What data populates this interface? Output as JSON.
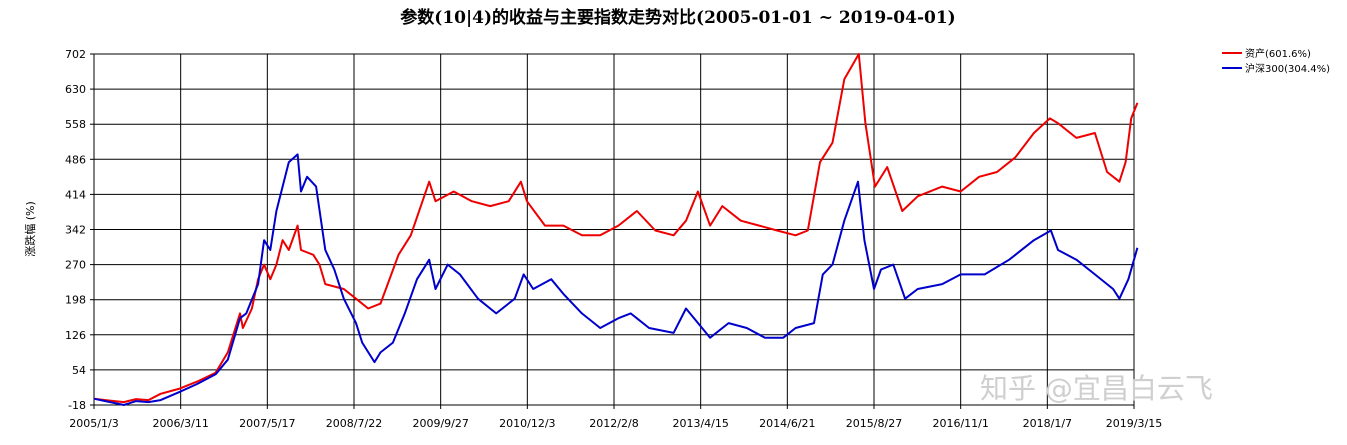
{
  "chart_data": {
    "type": "line",
    "title": "参数(10|4)的收益与主要指数走势对比(2005-01-01 ~ 2019-04-01)",
    "xlabel": "",
    "ylabel": "涨跌幅 (%)",
    "ylim": [
      -18,
      702
    ],
    "yticks": [
      "-18",
      "54",
      "126",
      "198",
      "270",
      "342",
      "414",
      "486",
      "558",
      "630",
      "702"
    ],
    "xticks": [
      "2005/1/3",
      "2006/3/11",
      "2007/5/17",
      "2008/7/22",
      "2009/9/27",
      "2010/12/3",
      "2012/2/8",
      "2013/4/15",
      "2014/6/21",
      "2015/8/27",
      "2016/11/1",
      "2018/1/7",
      "2019/3/15"
    ],
    "grid": true,
    "legend_position": "top-right",
    "series": [
      {
        "name": "资产(601.6%)",
        "color": "#ee0000",
        "points": [
          [
            "2005/1/3",
            -5
          ],
          [
            "2005/3/1",
            -8
          ],
          [
            "2005/6/1",
            -12
          ],
          [
            "2005/8/1",
            -6
          ],
          [
            "2005/10/1",
            -8
          ],
          [
            "2005/12/1",
            5
          ],
          [
            "2006/3/1",
            15
          ],
          [
            "2006/6/1",
            30
          ],
          [
            "2006/9/1",
            48
          ],
          [
            "2006/11/1",
            90
          ],
          [
            "2007/1/1",
            170
          ],
          [
            "2007/1/15",
            140
          ],
          [
            "2007/3/1",
            180
          ],
          [
            "2007/4/1",
            240
          ],
          [
            "2007/5/1",
            270
          ],
          [
            "2007/6/1",
            240
          ],
          [
            "2007/7/1",
            270
          ],
          [
            "2007/8/1",
            320
          ],
          [
            "2007/9/1",
            300
          ],
          [
            "2007/10/15",
            350
          ],
          [
            "2007/11/1",
            300
          ],
          [
            "2008/1/1",
            290
          ],
          [
            "2008/2/1",
            270
          ],
          [
            "2008/3/1",
            230
          ],
          [
            "2008/6/1",
            220
          ],
          [
            "2008/8/1",
            200
          ],
          [
            "2008/10/1",
            180
          ],
          [
            "2008/12/1",
            190
          ],
          [
            "2009/3/1",
            290
          ],
          [
            "2009/5/1",
            330
          ],
          [
            "2009/8/1",
            440
          ],
          [
            "2009/9/1",
            400
          ],
          [
            "2009/12/1",
            420
          ],
          [
            "2010/3/1",
            400
          ],
          [
            "2010/6/1",
            390
          ],
          [
            "2010/9/1",
            400
          ],
          [
            "2010/11/1",
            440
          ],
          [
            "2010/12/1",
            400
          ],
          [
            "2011/3/1",
            350
          ],
          [
            "2011/6/1",
            350
          ],
          [
            "2011/9/1",
            330
          ],
          [
            "2011/12/1",
            330
          ],
          [
            "2012/3/1",
            350
          ],
          [
            "2012/6/1",
            380
          ],
          [
            "2012/9/1",
            340
          ],
          [
            "2012/12/1",
            330
          ],
          [
            "2013/2/1",
            360
          ],
          [
            "2013/4/1",
            420
          ],
          [
            "2013/6/1",
            350
          ],
          [
            "2013/8/1",
            390
          ],
          [
            "2013/11/1",
            360
          ],
          [
            "2014/2/1",
            350
          ],
          [
            "2014/5/1",
            340
          ],
          [
            "2014/8/1",
            330
          ],
          [
            "2014/10/1",
            340
          ],
          [
            "2014/12/1",
            480
          ],
          [
            "2015/2/1",
            520
          ],
          [
            "2015/4/1",
            650
          ],
          [
            "2015/6/12",
            702
          ],
          [
            "2015/7/15",
            560
          ],
          [
            "2015/9/1",
            430
          ],
          [
            "2015/11/1",
            470
          ],
          [
            "2016/1/15",
            380
          ],
          [
            "2016/4/1",
            410
          ],
          [
            "2016/8/1",
            430
          ],
          [
            "2016/11/1",
            420
          ],
          [
            "2017/2/1",
            450
          ],
          [
            "2017/5/1",
            460
          ],
          [
            "2017/8/1",
            490
          ],
          [
            "2017/11/1",
            540
          ],
          [
            "2018/1/20",
            570
          ],
          [
            "2018/3/1",
            560
          ],
          [
            "2018/6/1",
            530
          ],
          [
            "2018/9/1",
            540
          ],
          [
            "2018/11/1",
            460
          ],
          [
            "2019/1/1",
            440
          ],
          [
            "2019/2/1",
            480
          ],
          [
            "2019/3/1",
            570
          ],
          [
            "2019/4/1",
            601.6
          ]
        ]
      },
      {
        "name": "沪深300(304.4%)",
        "color": "#0000cc",
        "points": [
          [
            "2005/1/3",
            -5
          ],
          [
            "2005/3/1",
            -10
          ],
          [
            "2005/6/1",
            -18
          ],
          [
            "2005/8/1",
            -10
          ],
          [
            "2005/10/1",
            -12
          ],
          [
            "2005/12/1",
            -8
          ],
          [
            "2006/3/1",
            8
          ],
          [
            "2006/6/1",
            25
          ],
          [
            "2006/9/1",
            45
          ],
          [
            "2006/11/1",
            75
          ],
          [
            "2007/1/1",
            160
          ],
          [
            "2007/2/1",
            170
          ],
          [
            "2007/4/1",
            230
          ],
          [
            "2007/5/1",
            320
          ],
          [
            "2007/6/1",
            300
          ],
          [
            "2007/7/1",
            380
          ],
          [
            "2007/8/1",
            430
          ],
          [
            "2007/9/1",
            480
          ],
          [
            "2007/10/15",
            496
          ],
          [
            "2007/11/1",
            420
          ],
          [
            "2007/12/1",
            450
          ],
          [
            "2008/1/15",
            430
          ],
          [
            "2008/3/1",
            300
          ],
          [
            "2008/4/15",
            260
          ],
          [
            "2008/6/1",
            200
          ],
          [
            "2008/8/1",
            150
          ],
          [
            "2008/9/1",
            110
          ],
          [
            "2008/11/1",
            70
          ],
          [
            "2008/12/1",
            90
          ],
          [
            "2009/2/1",
            110
          ],
          [
            "2009/4/1",
            170
          ],
          [
            "2009/6/1",
            240
          ],
          [
            "2009/8/1",
            280
          ],
          [
            "2009/9/1",
            220
          ],
          [
            "2009/11/1",
            270
          ],
          [
            "2010/1/1",
            250
          ],
          [
            "2010/4/1",
            200
          ],
          [
            "2010/7/1",
            170
          ],
          [
            "2010/10/1",
            200
          ],
          [
            "2010/11/15",
            250
          ],
          [
            "2011/1/1",
            220
          ],
          [
            "2011/4/1",
            240
          ],
          [
            "2011/6/1",
            210
          ],
          [
            "2011/9/1",
            170
          ],
          [
            "2011/12/1",
            140
          ],
          [
            "2012/3/1",
            160
          ],
          [
            "2012/5/1",
            170
          ],
          [
            "2012/8/1",
            140
          ],
          [
            "2012/12/1",
            130
          ],
          [
            "2013/2/1",
            180
          ],
          [
            "2013/6/1",
            120
          ],
          [
            "2013/9/1",
            150
          ],
          [
            "2013/12/1",
            140
          ],
          [
            "2014/3/1",
            120
          ],
          [
            "2014/6/1",
            120
          ],
          [
            "2014/8/1",
            140
          ],
          [
            "2014/11/1",
            150
          ],
          [
            "2014/12/15",
            250
          ],
          [
            "2015/2/1",
            270
          ],
          [
            "2015/4/1",
            360
          ],
          [
            "2015/6/8",
            440
          ],
          [
            "2015/7/10",
            320
          ],
          [
            "2015/8/27",
            220
          ],
          [
            "2015/10/1",
            260
          ],
          [
            "2015/12/1",
            270
          ],
          [
            "2016/1/29",
            200
          ],
          [
            "2016/4/1",
            220
          ],
          [
            "2016/8/1",
            230
          ],
          [
            "2016/11/1",
            250
          ],
          [
            "2017/3/1",
            250
          ],
          [
            "2017/7/1",
            280
          ],
          [
            "2017/11/1",
            320
          ],
          [
            "2018/1/25",
            340
          ],
          [
            "2018/3/1",
            300
          ],
          [
            "2018/6/1",
            280
          ],
          [
            "2018/9/1",
            250
          ],
          [
            "2018/12/1",
            220
          ],
          [
            "2019/1/1",
            200
          ],
          [
            "2019/2/15",
            240
          ],
          [
            "2019/4/1",
            304.4
          ]
        ]
      }
    ]
  },
  "watermark": "知乎 @宜昌白云飞"
}
